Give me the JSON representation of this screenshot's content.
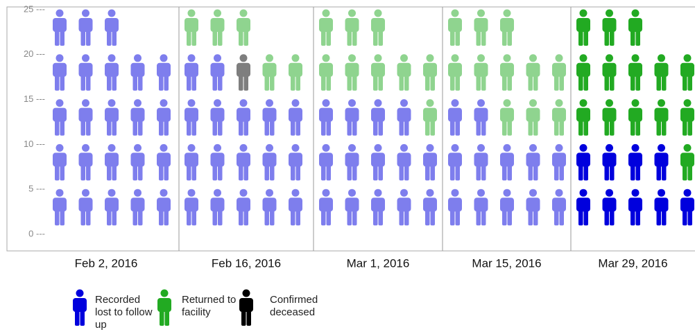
{
  "chart_data": {
    "type": "pictograph",
    "categories": [
      "Feb 2, 2016",
      "Feb 16, 2016",
      "Mar 1, 2016",
      "Mar 15, 2016",
      "Mar 29, 2016"
    ],
    "series": [
      {
        "name": "Recorded lost to follow up",
        "color": "#0000dd",
        "values": [
          23,
          17,
          14,
          12,
          9
        ]
      },
      {
        "name": "Returned to facility",
        "color": "#22aa22",
        "values": [
          0,
          5,
          9,
          11,
          14
        ]
      },
      {
        "name": "Confirmed deceased",
        "color": "#000000",
        "values": [
          0,
          1,
          0,
          0,
          0
        ]
      }
    ],
    "ylim": [
      0,
      25
    ],
    "yticks": [
      {
        "value": 0,
        "label": "0 ---"
      },
      {
        "value": 5,
        "label": "5 ---"
      },
      {
        "value": 10,
        "label": "10 ---"
      },
      {
        "value": 15,
        "label": "15 ---"
      },
      {
        "value": 20,
        "label": "20 ---"
      },
      {
        "value": 25,
        "label": "25 ---"
      }
    ]
  }
}
